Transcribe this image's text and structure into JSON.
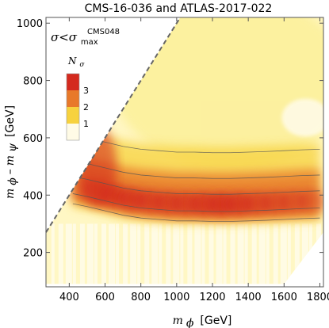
{
  "chart_data": {
    "type": "heatmap",
    "title": "CMS-16-036 and ATLAS-2017-022",
    "condition_text": {
      "lhs": "σ<σ",
      "sub": "max",
      "sup": "CMS048"
    },
    "xlabel": {
      "var": "m",
      "sub": "ϕ",
      "unit": "[GeV]"
    },
    "ylabel": {
      "var1": "m",
      "sub1": "ϕ",
      "minus": "–",
      "var2": "m",
      "sub2": "ψ",
      "unit": "[GeV]"
    },
    "xlim": [
      270,
      1820
    ],
    "ylim": [
      80,
      1020
    ],
    "xticks": [
      400,
      600,
      800,
      1000,
      1200,
      1400,
      1600,
      1800
    ],
    "yticks": [
      200,
      400,
      600,
      800,
      1000
    ],
    "grid": false,
    "colorbar": {
      "title": "N",
      "title_sub": "σ",
      "levels": [
        1,
        2,
        3
      ],
      "colors": [
        "#fffbe6",
        "#f7d23e",
        "#e8792a",
        "#d42a1e"
      ],
      "placement": "top-left"
    },
    "region": {
      "diagonal_boundary": [
        [
          270,
          270
        ],
        [
          1020,
          1020
        ]
      ],
      "lower_boundary_y": 90,
      "upper_right_corner": [
        1800,
        1000
      ],
      "lower_right_cut": [
        [
          1600,
          90
        ],
        [
          1800,
          270
        ]
      ]
    },
    "band": {
      "description_points_x": [
        420,
        500,
        600,
        700,
        800,
        900,
        1000,
        1100,
        1200,
        1300,
        1400,
        1500,
        1600,
        1700,
        1800
      ],
      "center_y": [
        430,
        420,
        405,
        390,
        380,
        375,
        370,
        370,
        368,
        368,
        370,
        372,
        375,
        378,
        380
      ],
      "peak_nsigma": [
        2.3,
        2.7,
        3.0,
        3.0,
        2.9,
        2.9,
        2.9,
        3.0,
        3.1,
        3.0,
        2.8,
        2.7,
        2.6,
        2.5,
        2.4
      ]
    }
  }
}
